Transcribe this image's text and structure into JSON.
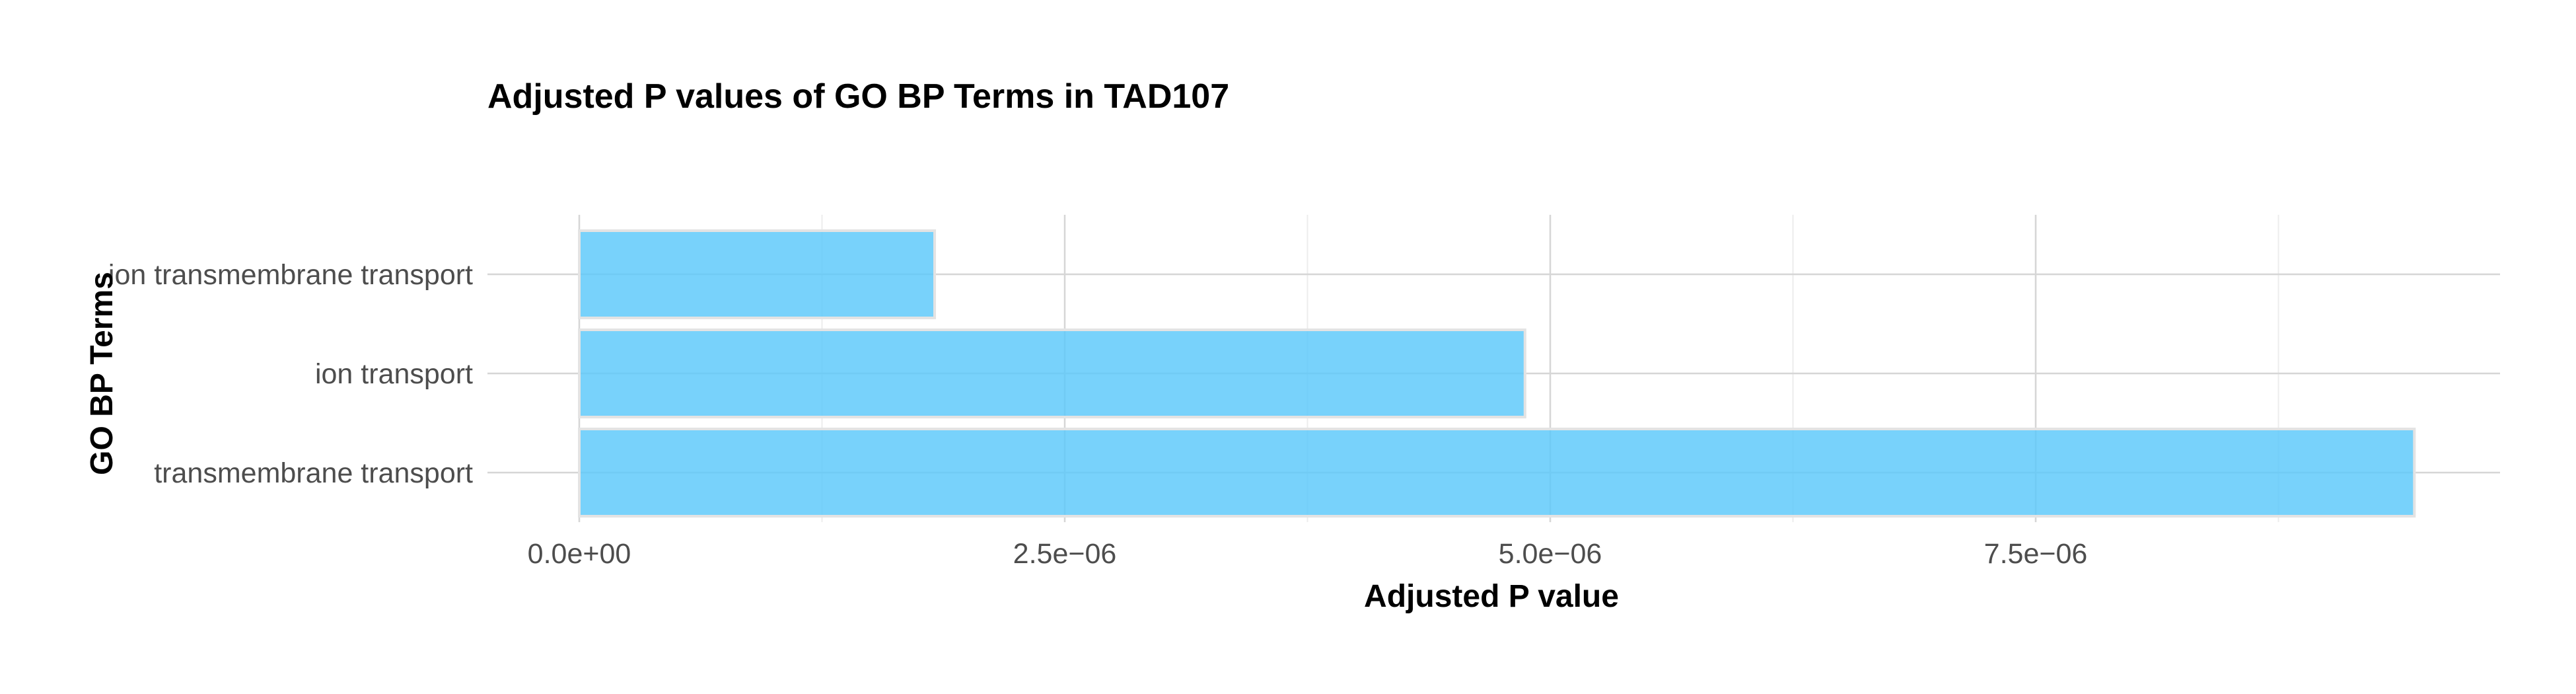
{
  "chart_data": {
    "type": "bar",
    "orientation": "horizontal",
    "title": "Adjusted P values of GO BP Terms in TAD107",
    "xlabel": "Adjusted P value",
    "ylabel": "GO BP Terms",
    "categories": [
      "ion transmembrane transport",
      "ion transport",
      "transmembrane transport"
    ],
    "values": [
      1.83e-06,
      4.87e-06,
      9.45e-06
    ],
    "xlim": [
      0,
      9.9e-06
    ],
    "xticks": [
      0,
      2.5e-06,
      5e-06,
      7.5e-06
    ],
    "xtick_labels": [
      "0.0e+00",
      "2.5e−06",
      "5.0e−06",
      "7.5e−06"
    ],
    "grid": true,
    "bar_color": "#5ac8fa",
    "bar_outline": "#e3e3e3",
    "legend": "none"
  }
}
